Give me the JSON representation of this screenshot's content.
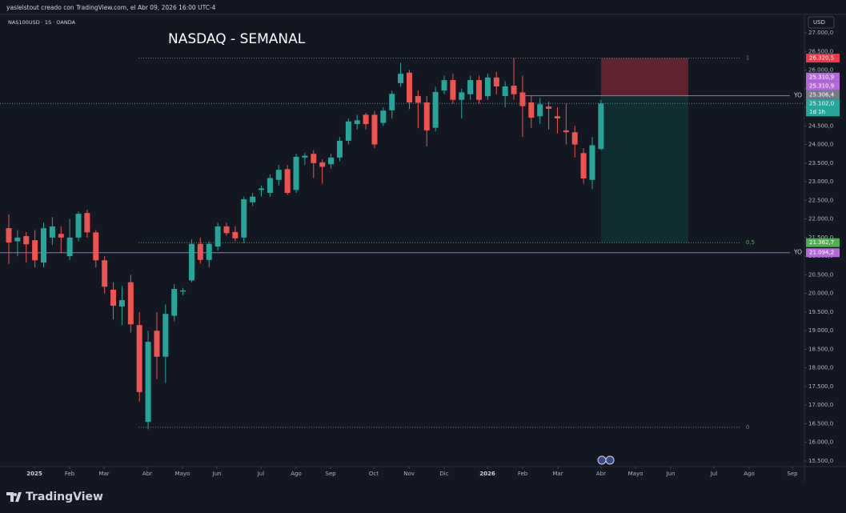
{
  "chart_data": {
    "type": "candlestick",
    "attribution": "yaslelstout creado con TradingView.com, el Abr 09, 2026 16:00 UTC-4",
    "symbol": "NAS100USD · 1S · OANDA",
    "title": "NASDAQ - SEMANAL",
    "currency": "USD",
    "brand": "TradingView",
    "up_color": "#26a69a",
    "down_color": "#ef5350",
    "grid": false,
    "open": [
      21754,
      21400,
      21540,
      21430,
      20830,
      21500,
      21600,
      21000,
      21500,
      22160,
      21640,
      20890,
      20100,
      19650,
      20300,
      19150,
      16550,
      19000,
      18300,
      19400,
      20050,
      20350,
      21330,
      20900,
      21260,
      21800,
      21650,
      21500,
      22450,
      22780,
      22700,
      23050,
      23340,
      22780,
      23650,
      23750,
      23520,
      23470,
      23650,
      24100,
      24550,
      24800,
      24800,
      24580,
      24920,
      25650,
      25930,
      25300,
      25130,
      24450,
      25450,
      25730,
      25200,
      25350,
      25730,
      25300,
      25800,
      25300,
      25580,
      25400,
      25130,
      24760,
      25020,
      24760,
      24380,
      24330,
      23770,
      23050,
      23880
    ],
    "high": [
      22120,
      21700,
      21650,
      21700,
      21900,
      22050,
      21800,
      22000,
      22200,
      22250,
      21700,
      21000,
      20300,
      20200,
      20500,
      19500,
      19000,
      19500,
      19700,
      20250,
      20150,
      21450,
      21500,
      21400,
      21900,
      21900,
      21800,
      22600,
      22700,
      22900,
      23200,
      23450,
      23450,
      23750,
      23780,
      23850,
      23600,
      23750,
      24200,
      24700,
      24800,
      24850,
      24900,
      25000,
      25450,
      26200,
      26000,
      25450,
      25300,
      25550,
      25850,
      25900,
      25500,
      25850,
      25850,
      25900,
      25950,
      25700,
      26320,
      25850,
      25300,
      25250,
      25150,
      25000,
      25100,
      24500,
      23900,
      24200,
      25200
    ],
    "low": [
      20790,
      21000,
      20830,
      20700,
      20700,
      21300,
      21100,
      20900,
      21400,
      21500,
      20700,
      20000,
      19300,
      19150,
      18950,
      17100,
      16350,
      17700,
      17600,
      19250,
      19950,
      20300,
      20800,
      20700,
      21150,
      21550,
      21400,
      21350,
      22350,
      22600,
      22600,
      22900,
      22650,
      22700,
      23450,
      23100,
      22950,
      23350,
      23550,
      24000,
      24400,
      24400,
      23900,
      24500,
      24700,
      25550,
      24950,
      24440,
      23950,
      24350,
      25350,
      25100,
      24700,
      25200,
      25100,
      25200,
      25350,
      25000,
      25200,
      24200,
      24450,
      24550,
      24400,
      24300,
      24000,
      23650,
      22950,
      22800,
      23850
    ],
    "close": [
      21367,
      21500,
      21320,
      20890,
      21750,
      21800,
      21500,
      21500,
      22140,
      21640,
      20890,
      20180,
      19670,
      19820,
      19170,
      17350,
      18700,
      18300,
      19450,
      20120,
      20080,
      21330,
      20900,
      21330,
      21800,
      21620,
      21480,
      22530,
      22600,
      22820,
      23100,
      23320,
      22700,
      23670,
      23700,
      23500,
      23400,
      23650,
      24100,
      24620,
      24650,
      24550,
      24000,
      24910,
      25360,
      25900,
      25130,
      25120,
      24380,
      25410,
      25730,
      25200,
      25400,
      25730,
      25200,
      25800,
      25560,
      25560,
      25350,
      25030,
      24720,
      25080,
      24960,
      24700,
      24330,
      24000,
      23090,
      23980,
      25102
    ],
    "xlim": [
      -1.01,
      91.36
    ],
    "xticks": [
      {
        "value": 2.94,
        "label": "2025"
      },
      {
        "value": 6.99,
        "label": "Feb"
      },
      {
        "value": 10.94,
        "label": "Mar"
      },
      {
        "value": 15.9,
        "label": "Abr"
      },
      {
        "value": 19.94,
        "label": "Mayo"
      },
      {
        "value": 23.9,
        "label": "Jun"
      },
      {
        "value": 28.95,
        "label": "Jul"
      },
      {
        "value": 33.0,
        "label": "Ago"
      },
      {
        "value": 36.95,
        "label": "Sep"
      },
      {
        "value": 41.91,
        "label": "Oct"
      },
      {
        "value": 45.96,
        "label": "Nov"
      },
      {
        "value": 50.0,
        "label": "Dic"
      },
      {
        "value": 54.96,
        "label": "2026"
      },
      {
        "value": 59.01,
        "label": "Feb"
      },
      {
        "value": 63.05,
        "label": "Mar"
      },
      {
        "value": 68.01,
        "label": "Abr"
      },
      {
        "value": 71.97,
        "label": "Mayo"
      },
      {
        "value": 76.01,
        "label": "Jun"
      },
      {
        "value": 80.97,
        "label": "Jul"
      },
      {
        "value": 85.02,
        "label": "Ago"
      },
      {
        "value": 89.98,
        "label": "Sep"
      }
    ],
    "ylim": [
      15400,
      27000
    ],
    "yticks": [
      {
        "value": 15500,
        "label": "15.500,0"
      },
      {
        "value": 16000,
        "label": "16.000,0"
      },
      {
        "value": 16500,
        "label": "16.500,0"
      },
      {
        "value": 17000,
        "label": "17.000,0"
      },
      {
        "value": 17500,
        "label": "17.500,0"
      },
      {
        "value": 18000,
        "label": "18.000,0"
      },
      {
        "value": 18500,
        "label": "18.500,0"
      },
      {
        "value": 19000,
        "label": "19.000,0"
      },
      {
        "value": 19500,
        "label": "19.500,0"
      },
      {
        "value": 20000,
        "label": "20.000,0"
      },
      {
        "value": 20500,
        "label": "20.500,0"
      },
      {
        "value": 21000,
        "label": "21.000,0"
      },
      {
        "value": 21500,
        "label": "21.500,0"
      },
      {
        "value": 22000,
        "label": "22.000,0"
      },
      {
        "value": 22500,
        "label": "22.500,0"
      },
      {
        "value": 23000,
        "label": "23.000,0"
      },
      {
        "value": 23500,
        "label": "23.500,0"
      },
      {
        "value": 24000,
        "label": "24.000,0"
      },
      {
        "value": 24500,
        "label": "24.500,0"
      },
      {
        "value": 25000,
        "label": "25.000,0"
      },
      {
        "value": 25500,
        "label": "25.500,0"
      },
      {
        "value": 26000,
        "label": "26.000,0"
      },
      {
        "value": 26500,
        "label": "26.500,0"
      },
      {
        "value": 27000,
        "label": "27.000,0"
      }
    ],
    "fib_levels": [
      {
        "value": 26320.5,
        "label": "1",
        "color": "#787b86"
      },
      {
        "value": 21362.7,
        "label": "0,5",
        "color": "#4caf50"
      },
      {
        "value": 16404.9,
        "label": "0",
        "color": "#787b86"
      }
    ],
    "fib_x": [
      14.9,
      84.0
    ],
    "horizontal_lines": [
      {
        "value": 25310.9,
        "label": "YO",
        "x_start": 59.2,
        "color": "#9c6fd0"
      },
      {
        "value": 21094.2,
        "label": "YO",
        "x_start": -1.01,
        "color": "#9c6fd0"
      }
    ],
    "position": {
      "stop": 26320.5,
      "entry": 25306.4,
      "target": 21362.7,
      "x": [
        68,
        78.03
      ]
    },
    "price_labels": [
      {
        "value": 26320.5,
        "label": "26.320,5",
        "color": "#f23645"
      },
      {
        "value": 25310.9,
        "label": "25.310,9",
        "color": "#b36ad8"
      },
      {
        "value": 25310.9,
        "label": "25.310,9",
        "color": "#b36ad8"
      },
      {
        "value": 25306.4,
        "label": "25.306,4",
        "color": "#787b86"
      },
      {
        "value": 25102.0,
        "label": "25.102,0",
        "color": "#26a69a",
        "countdown": "1d 1h"
      },
      {
        "value": 21362.7,
        "label": "21.362,7",
        "color": "#4caf50"
      },
      {
        "value": 21094.2,
        "label": "21.094,2",
        "color": "#b36ad8"
      }
    ]
  }
}
